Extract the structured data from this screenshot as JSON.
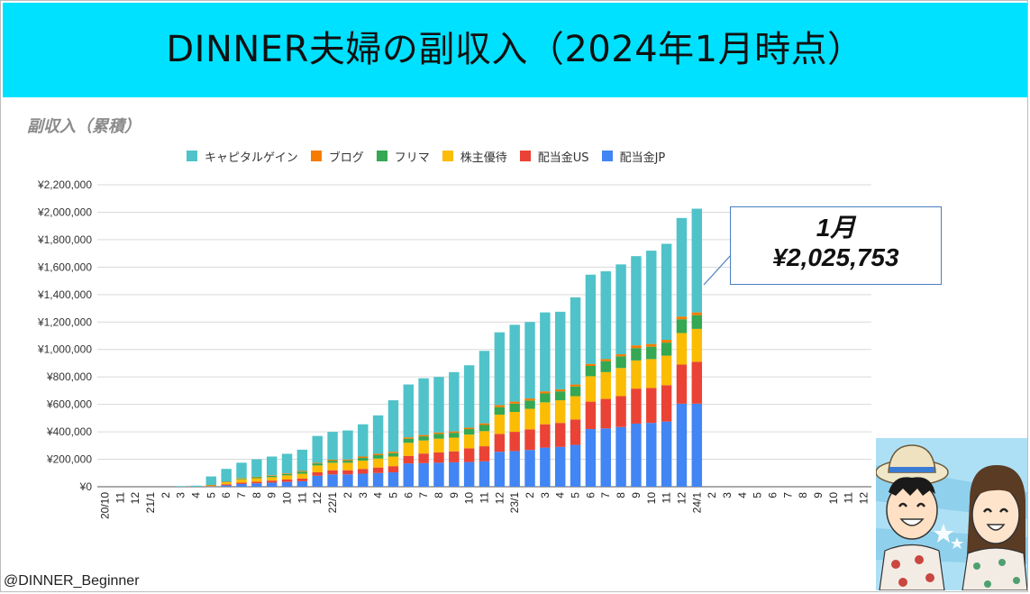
{
  "header": {
    "title": "DINNER夫婦の副収入（2024年1月時点）"
  },
  "chart_subtitle": "副収入（累積）",
  "callout": {
    "month": "1月",
    "value": "¥2,025,753"
  },
  "handle": "@DINNER_Beginner",
  "colors": {
    "header_bg": "#00e1ff",
    "capital": "#4fc3c9",
    "blog": "#f57c00",
    "flea": "#34a853",
    "yutai": "#fbbc04",
    "div_us": "#ea4335",
    "div_jp": "#4285f4"
  },
  "chart_data": {
    "type": "bar",
    "stacked": true,
    "title": "",
    "xlabel": "",
    "ylabel": "",
    "ylim": [
      0,
      2200000
    ],
    "y_ticks": [
      "¥0",
      "¥200,000",
      "¥400,000",
      "¥600,000",
      "¥800,000",
      "¥1,000,000",
      "¥1,200,000",
      "¥1,400,000",
      "¥1,600,000",
      "¥1,800,000",
      "¥2,000,000",
      "¥2,200,000"
    ],
    "grid": true,
    "legend_position": "top",
    "categories": [
      "20/10",
      "11",
      "12",
      "21/1",
      "2",
      "3",
      "4",
      "5",
      "6",
      "7",
      "8",
      "9",
      "10",
      "11",
      "12",
      "22/1",
      "2",
      "3",
      "4",
      "5",
      "6",
      "7",
      "8",
      "9",
      "10",
      "11",
      "12",
      "23/1",
      "2",
      "3",
      "4",
      "5",
      "6",
      "7",
      "8",
      "9",
      "10",
      "11",
      "12",
      "24/1",
      "2",
      "3",
      "4",
      "5",
      "6",
      "7",
      "8",
      "9",
      "10",
      "11",
      "12"
    ],
    "series": [
      {
        "name": "配当金JP",
        "color": "#4285f4",
        "values": [
          0,
          0,
          0,
          0,
          0,
          0,
          0,
          2000,
          10000,
          20000,
          25000,
          30000,
          35000,
          40000,
          80000,
          90000,
          90000,
          95000,
          100000,
          105000,
          170000,
          172000,
          175000,
          178000,
          180000,
          185000,
          255000,
          260000,
          268000,
          285000,
          290000,
          305000,
          420000,
          425000,
          435000,
          460000,
          465000,
          475000,
          605000,
          605000,
          0,
          0,
          0,
          0,
          0,
          0,
          0,
          0,
          0,
          0,
          0
        ]
      },
      {
        "name": "配当金US",
        "color": "#ea4335",
        "values": [
          0,
          0,
          0,
          0,
          0,
          0,
          0,
          3000,
          8000,
          10000,
          12000,
          15000,
          18000,
          20000,
          25000,
          30000,
          30000,
          35000,
          40000,
          45000,
          55000,
          70000,
          75000,
          80000,
          100000,
          110000,
          130000,
          140000,
          150000,
          170000,
          175000,
          185000,
          200000,
          215000,
          225000,
          255000,
          255000,
          265000,
          285000,
          305000,
          0,
          0,
          0,
          0,
          0,
          0,
          0,
          0,
          0,
          0,
          0
        ]
      },
      {
        "name": "株主優待",
        "color": "#fbbc04",
        "values": [
          0,
          0,
          0,
          0,
          0,
          0,
          0,
          5000,
          15000,
          25000,
          25000,
          25000,
          30000,
          35000,
          50000,
          55000,
          55000,
          60000,
          65000,
          70000,
          95000,
          95000,
          100000,
          100000,
          100000,
          110000,
          140000,
          145000,
          150000,
          160000,
          165000,
          170000,
          185000,
          195000,
          205000,
          205000,
          210000,
          215000,
          230000,
          240000,
          0,
          0,
          0,
          0,
          0,
          0,
          0,
          0,
          0,
          0,
          0
        ]
      },
      {
        "name": "フリマ",
        "color": "#34a853",
        "values": [
          0,
          0,
          0,
          0,
          0,
          0,
          0,
          2000,
          3000,
          5000,
          8000,
          10000,
          10000,
          15000,
          15000,
          15000,
          15000,
          20000,
          25000,
          25000,
          30000,
          30000,
          35000,
          35000,
          40000,
          45000,
          55000,
          60000,
          60000,
          65000,
          65000,
          70000,
          75000,
          80000,
          85000,
          90000,
          90000,
          95000,
          100000,
          100000,
          0,
          0,
          0,
          0,
          0,
          0,
          0,
          0,
          0,
          0,
          0
        ]
      },
      {
        "name": "ブログ",
        "color": "#f57c00",
        "values": [
          0,
          0,
          0,
          0,
          0,
          0,
          0,
          1000,
          2000,
          3000,
          3000,
          4000,
          5000,
          5000,
          5000,
          7000,
          8000,
          10000,
          10000,
          10000,
          10000,
          10000,
          10000,
          10000,
          10000,
          12000,
          15000,
          15000,
          15000,
          15000,
          15000,
          15000,
          15000,
          15000,
          15000,
          20000,
          20000,
          20000,
          20000,
          20000,
          0,
          0,
          0,
          0,
          0,
          0,
          0,
          0,
          0,
          0,
          0
        ]
      },
      {
        "name": "キャピタルゲイン",
        "color": "#4fc3c9",
        "values": [
          0,
          0,
          0,
          0,
          0,
          5000,
          8000,
          62000,
          92000,
          112000,
          127000,
          136000,
          142000,
          155000,
          195000,
          203000,
          212000,
          235000,
          280000,
          375000,
          385000,
          413000,
          405000,
          432000,
          455000,
          528000,
          530000,
          560000,
          557000,
          575000,
          565000,
          635000,
          650000,
          640000,
          655000,
          650000,
          680000,
          700000,
          718000,
          755753,
          0,
          0,
          0,
          0,
          0,
          0,
          0,
          0,
          0,
          0,
          0
        ]
      }
    ]
  }
}
